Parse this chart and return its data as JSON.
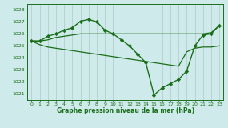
{
  "xlabel": "Graphe pression niveau de la mer (hPa)",
  "bg_color": "#ceeaea",
  "grid_color": "#b0c8c8",
  "line_color": "#1a6e1a",
  "ylim": [
    1020.5,
    1028.5
  ],
  "xlim": [
    -0.5,
    23.5
  ],
  "yticks": [
    1021,
    1022,
    1023,
    1024,
    1025,
    1026,
    1027,
    1028
  ],
  "xticks": [
    0,
    1,
    2,
    3,
    4,
    5,
    6,
    7,
    8,
    9,
    10,
    11,
    12,
    13,
    14,
    15,
    16,
    17,
    18,
    19,
    20,
    21,
    22,
    23
  ],
  "series1_x": [
    0,
    1,
    2,
    3,
    4,
    5,
    6,
    7,
    8,
    9,
    10,
    11,
    12,
    13,
    14,
    15,
    16,
    17,
    18,
    19,
    20,
    21,
    22,
    23
  ],
  "series1_y": [
    1025.4,
    1025.4,
    1025.5,
    1025.7,
    1025.8,
    1025.9,
    1026.0,
    1026.0,
    1026.0,
    1026.0,
    1026.0,
    1026.0,
    1026.0,
    1026.0,
    1026.0,
    1026.0,
    1026.0,
    1026.0,
    1026.0,
    1026.0,
    1026.0,
    1026.0,
    1026.1,
    1026.7
  ],
  "series2_x": [
    0,
    1,
    2,
    3,
    4,
    5,
    6,
    7,
    8,
    9,
    10,
    11,
    12,
    13,
    14,
    15,
    16,
    17,
    18,
    19,
    20,
    21,
    22,
    23
  ],
  "series2_y": [
    1025.4,
    1025.1,
    1024.9,
    1024.8,
    1024.7,
    1024.6,
    1024.5,
    1024.4,
    1024.3,
    1024.2,
    1024.1,
    1024.0,
    1023.9,
    1023.8,
    1023.7,
    1023.6,
    1023.5,
    1023.4,
    1023.3,
    1024.5,
    1024.8,
    1024.9,
    1024.9,
    1025.0
  ],
  "series3_x": [
    0,
    1,
    2,
    3,
    4,
    5,
    6,
    7,
    8,
    9,
    10,
    11,
    12,
    13,
    14,
    15,
    16,
    17,
    18,
    19,
    20,
    21,
    22,
    23
  ],
  "series3_y": [
    1025.4,
    1025.4,
    1025.8,
    1026.0,
    1026.3,
    1026.5,
    1027.05,
    1027.2,
    1027.0,
    1026.3,
    1026.0,
    1025.5,
    1025.0,
    1024.3,
    1023.6,
    1020.9,
    1021.5,
    1021.85,
    1022.2,
    1022.9,
    1025.0,
    1025.9,
    1026.0,
    1026.7
  ]
}
